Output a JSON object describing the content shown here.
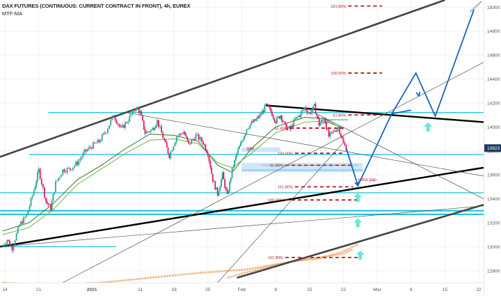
{
  "header": {
    "title": "DAX FUTURES (CONTINUOUS: CURRENT CONTRACT IN FRONT), 4h, EUREX",
    "indicator": "MTF-MA"
  },
  "colors": {
    "up_candle": "#26a69a",
    "down_candle": "#d81b60",
    "support_line": "#26c6da",
    "channel": "#000000",
    "projection": "#1565c0",
    "fib_marker": "#b71c1c",
    "ma_fast": "#2e7d32",
    "ma_slow": "#7cb342",
    "ma_long": "#f4a460",
    "arrow": "#5ff0e0",
    "price_tag": "#1e3a5f"
  },
  "chart_data": {
    "type": "candlestick",
    "title": "DAX FUTURES (CONTINUOUS: CURRENT CONTRACT IN FRONT), 4h, EUREX",
    "y_axis": {
      "ticks": [
        12800,
        13000,
        13200,
        13400,
        13600,
        13800,
        14000,
        14200,
        14400,
        14600,
        14800,
        15000
      ],
      "ylim": [
        12700,
        15060
      ]
    },
    "x_axis": {
      "ticks": [
        {
          "label": "14",
          "t": 0
        },
        {
          "label": "21",
          "t": 7
        },
        {
          "label": "2021",
          "t": 18
        },
        {
          "label": "11",
          "t": 28
        },
        {
          "label": "18",
          "t": 35
        },
        {
          "label": "25",
          "t": 42
        },
        {
          "label": "Feb",
          "t": 49
        },
        {
          "label": "8",
          "t": 56
        },
        {
          "label": "15",
          "t": 63
        },
        {
          "label": "22",
          "t": 70
        },
        {
          "label": "Mar",
          "t": 77
        },
        {
          "label": "8",
          "t": 84
        },
        {
          "label": "15",
          "t": 91
        },
        {
          "label": "22",
          "t": 98
        }
      ],
      "xlim": [
        -1,
        99
      ]
    },
    "last_price": "13823",
    "candles_path": [
      [
        -0.5,
        13000
      ],
      [
        0.5,
        13060
      ],
      [
        1.5,
        12990
      ],
      [
        3,
        13180
      ],
      [
        4.5,
        13260
      ],
      [
        6,
        13470
      ],
      [
        7,
        13640
      ],
      [
        8.5,
        13380
      ],
      [
        9.5,
        13320
      ],
      [
        10.5,
        13530
      ],
      [
        12,
        13640
      ],
      [
        13.5,
        13650
      ],
      [
        15,
        13700
      ],
      [
        16.5,
        13790
      ],
      [
        18,
        13840
      ],
      [
        19.5,
        13880
      ],
      [
        21,
        13970
      ],
      [
        22.5,
        14100
      ],
      [
        24,
        13980
      ],
      [
        25.5,
        14060
      ],
      [
        27,
        14160
      ],
      [
        28,
        14120
      ],
      [
        29,
        13950
      ],
      [
        30.5,
        13980
      ],
      [
        31.5,
        14050
      ],
      [
        33,
        13880
      ],
      [
        34,
        13760
      ],
      [
        35.5,
        13920
      ],
      [
        37,
        13960
      ],
      [
        38,
        13850
      ],
      [
        39.5,
        13930
      ],
      [
        41,
        13870
      ],
      [
        42,
        13780
      ],
      [
        43,
        13560
      ],
      [
        44,
        13440
      ],
      [
        45,
        13600
      ],
      [
        46,
        13420
      ],
      [
        47,
        13640
      ],
      [
        48,
        13780
      ],
      [
        49,
        13880
      ],
      [
        50,
        13990
      ],
      [
        51,
        14030
      ],
      [
        52,
        14060
      ],
      [
        53,
        14110
      ],
      [
        54,
        14180
      ],
      [
        55,
        14130
      ],
      [
        56,
        14050
      ],
      [
        57,
        14100
      ],
      [
        58,
        14000
      ],
      [
        59,
        13980
      ],
      [
        60,
        14060
      ],
      [
        61,
        14100
      ],
      [
        62,
        14160
      ],
      [
        63,
        14110
      ],
      [
        64,
        14170
      ],
      [
        65,
        14020
      ],
      [
        66,
        14080
      ],
      [
        67,
        13920
      ],
      [
        68,
        13960
      ],
      [
        69,
        14000
      ],
      [
        70,
        13860
      ],
      [
        70.6,
        13823
      ]
    ],
    "series": [
      {
        "role": "ma_fast",
        "points": [
          [
            -0.5,
            13130
          ],
          [
            5,
            13200
          ],
          [
            10,
            13360
          ],
          [
            15,
            13560
          ],
          [
            20,
            13680
          ],
          [
            25,
            13820
          ],
          [
            30,
            13940
          ],
          [
            35,
            13930
          ],
          [
            40,
            13880
          ],
          [
            44,
            13680
          ],
          [
            47,
            13620
          ],
          [
            51,
            13820
          ],
          [
            56,
            14000
          ],
          [
            62,
            14080
          ],
          [
            66,
            14070
          ],
          [
            70,
            13980
          ]
        ]
      },
      {
        "role": "ma_slow",
        "points": [
          [
            -0.5,
            13100
          ],
          [
            5,
            13160
          ],
          [
            10,
            13310
          ],
          [
            15,
            13520
          ],
          [
            20,
            13650
          ],
          [
            25,
            13780
          ],
          [
            30,
            13890
          ],
          [
            35,
            13900
          ],
          [
            40,
            13860
          ],
          [
            44,
            13700
          ],
          [
            47,
            13660
          ],
          [
            51,
            13780
          ],
          [
            56,
            13950
          ],
          [
            62,
            14040
          ],
          [
            66,
            14050
          ],
          [
            70,
            13990
          ]
        ]
      },
      {
        "role": "ma_long",
        "points": [
          [
            46,
            12740
          ],
          [
            55,
            12840
          ],
          [
            60,
            12880
          ],
          [
            65,
            12900
          ],
          [
            70,
            12960
          ],
          [
            73,
            13020
          ]
        ]
      },
      {
        "role": "ma_long",
        "points": [
          [
            -0.5,
            12700
          ],
          [
            10,
            12680
          ],
          [
            20,
            12700
          ],
          [
            30,
            12740
          ],
          [
            40,
            12780
          ],
          [
            50,
            12810
          ],
          [
            60,
            12880
          ],
          [
            70,
            12940
          ],
          [
            72,
            12980
          ]
        ]
      }
    ],
    "horizontal_levels": [
      {
        "y": 14120,
        "t1": 9,
        "t2": 99
      },
      {
        "y": 14060,
        "t1": 66,
        "t2": 71
      },
      {
        "y": 13770,
        "t1": 5,
        "t2": 99
      },
      {
        "y": 13680,
        "t1": 53,
        "t2": 73
      },
      {
        "y": 13640,
        "t1": 49,
        "t2": 74
      },
      {
        "y": 13450,
        "t1": -1,
        "t2": 99
      },
      {
        "y": 13300,
        "t1": -1,
        "t2": 99
      },
      {
        "y": 13270,
        "t1": -1,
        "t2": 99
      },
      {
        "y": 13000,
        "t1": -1,
        "t2": 23
      }
    ],
    "trendlines": [
      {
        "style": "thick-gray",
        "points": [
          [
            -1,
            13750
          ],
          [
            91,
            15060
          ]
        ]
      },
      {
        "style": "thick-black",
        "points": [
          [
            -1,
            13000
          ],
          [
            99,
            13660
          ]
        ]
      },
      {
        "style": "thick-black",
        "points": [
          [
            54,
            14180
          ],
          [
            99,
            14040
          ]
        ]
      },
      {
        "style": "thick-gray",
        "points": [
          [
            48,
            12740
          ],
          [
            99,
            13350
          ]
        ]
      },
      {
        "style": "thin",
        "points": [
          [
            12,
            12700
          ],
          [
            99,
            14540
          ]
        ]
      },
      {
        "style": "thin",
        "points": [
          [
            25,
            14120
          ],
          [
            99,
            13590
          ]
        ]
      },
      {
        "style": "thin",
        "points": [
          [
            63,
            14140
          ],
          [
            99,
            13400
          ]
        ]
      },
      {
        "style": "thin",
        "points": [
          [
            -1,
            13000
          ],
          [
            99,
            13340
          ]
        ]
      },
      {
        "style": "thin",
        "points": [
          [
            44,
            12700
          ],
          [
            70,
            13870
          ]
        ]
      }
    ],
    "projection_path": [
      [
        70.6,
        13823
      ],
      [
        73,
        13510
      ],
      [
        80,
        14110
      ],
      [
        85,
        14450
      ],
      [
        89,
        14090
      ],
      [
        97,
        14980
      ]
    ],
    "projection_support": [
      [
        80,
        14110
      ],
      [
        84,
        14140
      ]
    ],
    "fib_levels": [
      {
        "label": "161.80%",
        "y": 15010,
        "t_label": 68,
        "t1": 71,
        "t2": 78
      },
      {
        "label": "100.00%",
        "y": 14450,
        "t_label": 68,
        "t1": 71,
        "t2": 78
      },
      {
        "label": "61.80%",
        "y": 14100,
        "t_label": 68,
        "t1": 71,
        "t2": 78
      },
      {
        "label": "61.80%",
        "y": 13990,
        "t_label": 56,
        "t1": 59,
        "t2": 70
      },
      {
        "label": "100.00%",
        "y": 13780,
        "t_label": 57,
        "t1": 60,
        "t2": 70
      },
      {
        "label": "61.80%",
        "y": 13680,
        "t_label": 55,
        "t1": 58,
        "t2": 72
      },
      {
        "label": "161.80%",
        "y": 13500,
        "t_label": 57,
        "t1": 60,
        "t2": 72
      },
      {
        "label": "100.00%",
        "y": 13390,
        "t_label": 55,
        "t1": 58,
        "t2": 73
      },
      {
        "label": "161.80%",
        "y": 12910,
        "t_label": 55,
        "t1": 58,
        "t2": 73
      }
    ],
    "annotations": [
      {
        "text": "gap",
        "t": 65.5,
        "y": 14030
      },
      {
        "text": "gap",
        "t": 50,
        "y": 13810
      },
      {
        "text": "extra gap",
        "t": 73,
        "y": 13550
      }
    ],
    "arrows": [
      {
        "t": 73,
        "y": 13410
      },
      {
        "t": 73,
        "y": 13200
      },
      {
        "t": 73.5,
        "y": 12930
      },
      {
        "t": 87.5,
        "y": 14000
      }
    ]
  }
}
